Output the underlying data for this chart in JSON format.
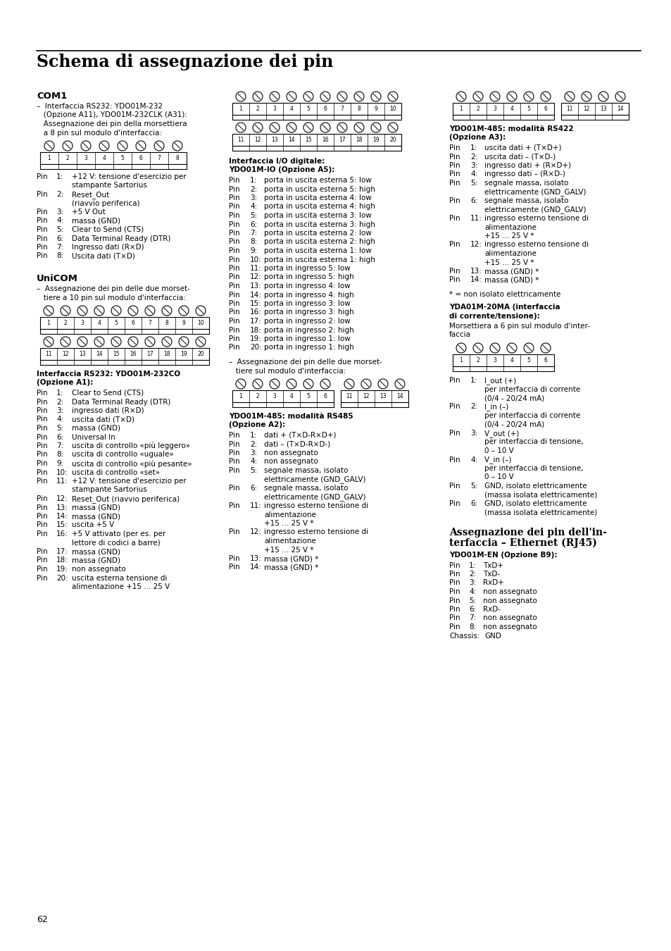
{
  "title": "Schema di assegnazione dei pin",
  "page_number": "62",
  "bg_color": "#ffffff",
  "col1": {
    "heading": "COM1",
    "intro_lines": [
      "–  Interfaccia RS232: YDO01M-232",
      "   (Opzione A11), YDO01M-232CLK (A31):",
      "   Assegnazione dei pin della morsettiera",
      "   a 8 pin sul modulo d'interfaccia:"
    ],
    "pin_list": [
      [
        "Pin",
        "1:",
        "+12 V: tensione d'esercizio per",
        "     stampante Sartorius"
      ],
      [
        "Pin",
        "2:",
        "Reset_Out",
        "     (riavvio periferica)"
      ],
      [
        "Pin",
        "3:",
        "+5 V Out"
      ],
      [
        "Pin",
        "4:",
        "massa (GND)"
      ],
      [
        "Pin",
        "5:",
        "Clear to Send (CTS)"
      ],
      [
        "Pin",
        "6:",
        "Data Terminal Ready (DTR)"
      ],
      [
        "Pin",
        "7:",
        "Ingresso dati (R×D)"
      ],
      [
        "Pin",
        "8:",
        "Uscita dati (T×D)"
      ]
    ],
    "heading2": "UniCOM",
    "intro2_lines": [
      "–  Assegnazione dei pin delle due morset-",
      "   tiere a 10 pin sul modulo d'interfaccia:"
    ],
    "heading3_lines": [
      "Interfaccia RS232: YDO01M-232CO",
      "(Opzione A1):"
    ],
    "pin_list2": [
      [
        "Pin",
        "1:",
        "Clear to Send (CTS)"
      ],
      [
        "Pin",
        "2:",
        "Data Terminal Ready (DTR)"
      ],
      [
        "Pin",
        "3:",
        "ingresso dati (R×D)"
      ],
      [
        "Pin",
        "4:",
        "uscita dati (T×D)"
      ],
      [
        "Pin",
        "5:",
        "massa (GND)"
      ],
      [
        "Pin",
        "6:",
        "Universal In"
      ],
      [
        "Pin",
        "7:",
        "uscita di controllo «più leggero»"
      ],
      [
        "Pin",
        "8:",
        "uscita di controllo «uguale»"
      ],
      [
        "Pin",
        "9:",
        "uscita di controllo «più pesante»"
      ],
      [
        "Pin",
        "10:",
        "uscita di controllo «set»"
      ],
      [
        "Pin",
        "11:",
        "+12 V: tensione d'esercizio per",
        "      stampante Sartorius"
      ],
      [
        "Pin",
        "12:",
        "Reset_Out (riavvio periferica)"
      ],
      [
        "Pin",
        "13:",
        "massa (GND)"
      ],
      [
        "Pin",
        "14:",
        "massa (GND)"
      ],
      [
        "Pin",
        "15:",
        "uscita +5 V"
      ],
      [
        "Pin",
        "16:",
        "+5 V attivato (per es. per",
        "      lettore di codici a barre)"
      ],
      [
        "Pin",
        "17:",
        "massa (GND)"
      ],
      [
        "Pin",
        "18:",
        "massa (GND)"
      ],
      [
        "Pin",
        "19:",
        "non assegnato"
      ],
      [
        "Pin",
        "20:",
        "uscita esterna tensione di",
        "      alimentazione +15 ... 25 V"
      ]
    ]
  },
  "col2": {
    "heading_io_lines": [
      "Interfaccia I/O digitale:",
      "YDO01M-IO (Opzione A5):"
    ],
    "pin_list_io": [
      [
        "Pin",
        "1:",
        "porta in uscita esterna 5: low"
      ],
      [
        "Pin",
        "2:",
        "porta in uscita esterna 5: high"
      ],
      [
        "Pin",
        "3:",
        "porta in uscita esterna 4: low"
      ],
      [
        "Pin",
        "4:",
        "porta in uscita esterna 4: high"
      ],
      [
        "Pin",
        "5:",
        "porta in uscita esterna 3: low"
      ],
      [
        "Pin",
        "6:",
        "porta in uscita esterna 3: high"
      ],
      [
        "Pin",
        "7:",
        "porta in uscita esterna 2: low"
      ],
      [
        "Pin",
        "8:",
        "porta in uscita esterna 2: high"
      ],
      [
        "Pin",
        "9:",
        "porta in uscita esterna 1: low"
      ],
      [
        "Pin",
        "10:",
        "porta in uscita esterna 1: high"
      ],
      [
        "Pin",
        "11:",
        "porta in ingresso 5: low"
      ],
      [
        "Pin",
        "12:",
        "porta in ingresso 5: high"
      ],
      [
        "Pin",
        "13:",
        "porta in ingresso 4: low"
      ],
      [
        "Pin",
        "14:",
        "porta in ingresso 4: high"
      ],
      [
        "Pin",
        "15:",
        "porta in ingresso 3: low"
      ],
      [
        "Pin",
        "16:",
        "porta in ingresso 3: high"
      ],
      [
        "Pin",
        "17:",
        "porta in ingresso 2: low"
      ],
      [
        "Pin",
        "18:",
        "porta in ingresso 2: high"
      ],
      [
        "Pin",
        "19:",
        "porta in ingresso 1: low"
      ],
      [
        "Pin",
        "20:",
        "porta in ingresso 1: high"
      ]
    ],
    "note_lines": [
      "–  Assegnazione dei pin delle due morset-",
      "   tiere sul modulo d'interfaccia:"
    ],
    "heading_rs485_a2_lines": [
      "YDO01M-485: modalità RS485",
      "(Opzione A2):"
    ],
    "pin_list_rs485_a2": [
      [
        "Pin",
        "1:",
        "dati + (T×D-R×D+)"
      ],
      [
        "Pin",
        "2:",
        "dati – (T×D-R×D-)"
      ],
      [
        "Pin",
        "3:",
        "non assegnato"
      ],
      [
        "Pin",
        "4:",
        "non assegnato"
      ],
      [
        "Pin",
        "5:",
        "segnale massa, isolato",
        "      elettricamente (GND_GALV)"
      ],
      [
        "Pin",
        "6:",
        "segnale massa, isolato",
        "      elettricamente (GND_GALV)"
      ],
      [
        "Pin",
        "11:",
        "ingresso esterno tensione di",
        "      alimentazione",
        "      +15 ... 25 V *"
      ],
      [
        "Pin",
        "12:",
        "ingresso esterno tensione di",
        "      alimentazione",
        "      +15 ... 25 V *"
      ],
      [
        "Pin",
        "13:",
        "massa (GND) *"
      ],
      [
        "Pin",
        "14:",
        "massa (GND) *"
      ]
    ]
  },
  "col3": {
    "heading_rs422_lines": [
      "YDO01M-485: modalità RS422",
      "(Opzione A3):"
    ],
    "pin_list_rs422": [
      [
        "Pin",
        "1:",
        "uscita dati + (T×D+)"
      ],
      [
        "Pin",
        "2:",
        "uscita dati – (T×D-)"
      ],
      [
        "Pin",
        "3:",
        "ingresso dati + (R×D+)"
      ],
      [
        "Pin",
        "4:",
        "ingresso dati – (R×D-)"
      ],
      [
        "Pin",
        "5:",
        "segnale massa, isolato",
        "      elettricamente (GND_GALV)"
      ],
      [
        "Pin",
        "6:",
        "segnale massa, isolato",
        "      elettricamente (GND_GALV)"
      ],
      [
        "Pin",
        "11:",
        "ingresso esterno tensione di",
        "      alimentazione",
        "      +15 ... 25 V *"
      ],
      [
        "Pin",
        "12:",
        "ingresso esterno tensione di",
        "      alimentazione",
        "      +15 ... 25 V *"
      ],
      [
        "Pin",
        "13:",
        "massa (GND) *"
      ],
      [
        "Pin",
        "14:",
        "massa (GND) *"
      ]
    ],
    "note_star": "* = non isolato elettricamente",
    "heading_yda_lines": [
      "YDA01M-20MA (interfaccia",
      "di corrente/tensione):"
    ],
    "intro_yda_lines": [
      "Morsettiera a 6 pin sul modulo d'inter-",
      "faccia"
    ],
    "pin_list_yda": [
      [
        "Pin",
        "1:",
        "I_out (+)",
        "     per interfaccia di corrente",
        "     (0/4 - 20/24 mA)"
      ],
      [
        "Pin",
        "2:",
        "I_in (–)",
        "     per interfaccia di corrente",
        "     (0/4 - 20/24 mA)"
      ],
      [
        "Pin",
        "3:",
        "V_out (+)",
        "     per interfaccia di tensione,",
        "     0 – 10 V"
      ],
      [
        "Pin",
        "4:",
        "V_in (–)",
        "     per interfaccia di tensione,",
        "     0 – 10 V"
      ],
      [
        "Pin",
        "5:",
        "GND, isolato elettricamente",
        "     (massa isolata elettricamente)"
      ],
      [
        "Pin",
        "6:",
        "GND, isolato elettricamente",
        "     (massa isolata elettricamente)"
      ]
    ],
    "heading_eth_lines": [
      "Assegnazione dei pin dell'in-",
      "terfaccia – Ethernet (RJ45)"
    ],
    "heading_eth2": "YDO01M-EN (Opzione B9):",
    "pin_list_eth": [
      [
        "Pin",
        "1:",
        "TxD+"
      ],
      [
        "Pin",
        "2:",
        "TxD-"
      ],
      [
        "Pin",
        "3:",
        "RxD+"
      ],
      [
        "Pin",
        "4:",
        "non assegnato"
      ],
      [
        "Pin",
        "5:",
        "non assegnato"
      ],
      [
        "Pin",
        "6:",
        "RxD-"
      ],
      [
        "Pin",
        "7:",
        "non assegnato"
      ],
      [
        "Pin",
        "8:",
        "non assegnato"
      ],
      [
        "Chassis:",
        "GND"
      ]
    ]
  }
}
